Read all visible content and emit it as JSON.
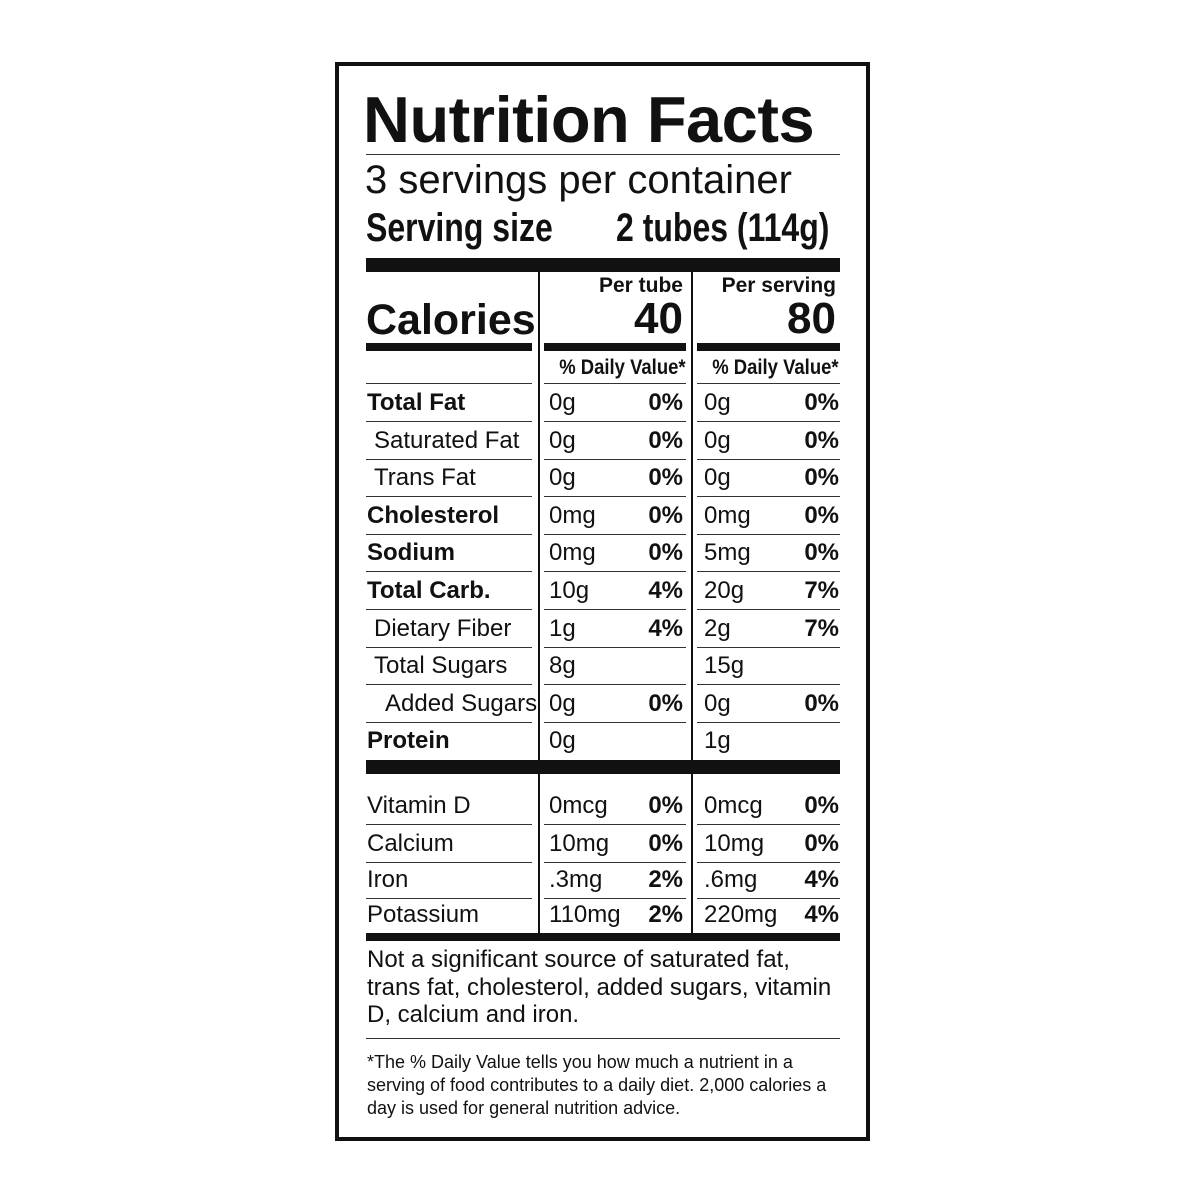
{
  "title": "Nutrition Facts",
  "servings_per_container": "3 servings per container",
  "serving_size": {
    "label": "Serving size",
    "value": "2 tubes (114g)"
  },
  "calories": {
    "label": "Calories",
    "columns": [
      {
        "header": "Per tube",
        "value": "40"
      },
      {
        "header": "Per serving",
        "value": "80"
      }
    ]
  },
  "daily_value_header": "% Daily Value*",
  "nutrients": [
    {
      "name": "Total Fat",
      "bold": true,
      "indent": 0,
      "c1": [
        "0g",
        "0%"
      ],
      "c2": [
        "0g",
        "0%"
      ]
    },
    {
      "name": "Saturated Fat",
      "bold": false,
      "indent": 1,
      "c1": [
        "0g",
        "0%"
      ],
      "c2": [
        "0g",
        "0%"
      ]
    },
    {
      "name": "Trans Fat",
      "bold": false,
      "indent": 1,
      "c1": [
        "0g",
        "0%"
      ],
      "c2": [
        "0g",
        "0%"
      ]
    },
    {
      "name": "Cholesterol",
      "bold": true,
      "indent": 0,
      "c1": [
        "0mg",
        "0%"
      ],
      "c2": [
        "0mg",
        "0%"
      ]
    },
    {
      "name": "Sodium",
      "bold": true,
      "indent": 0,
      "c1": [
        "0mg",
        "0%"
      ],
      "c2": [
        "5mg",
        "0%"
      ]
    },
    {
      "name": "Total Carb.",
      "bold": true,
      "indent": 0,
      "c1": [
        "10g",
        "4%"
      ],
      "c2": [
        "20g",
        "7%"
      ]
    },
    {
      "name": "Dietary Fiber",
      "bold": false,
      "indent": 1,
      "c1": [
        "1g",
        "4%"
      ],
      "c2": [
        "2g",
        "7%"
      ]
    },
    {
      "name": "Total Sugars",
      "bold": false,
      "indent": 1,
      "c1": [
        "8g",
        ""
      ],
      "c2": [
        "15g",
        ""
      ]
    },
    {
      "name": "Added Sugars",
      "bold": false,
      "indent": 2,
      "c1": [
        "0g",
        "0%"
      ],
      "c2": [
        "0g",
        "0%"
      ]
    },
    {
      "name": "Protein",
      "bold": true,
      "indent": 0,
      "c1": [
        "0g",
        ""
      ],
      "c2": [
        "1g",
        ""
      ]
    }
  ],
  "vitamins": [
    {
      "name": "Vitamin D",
      "c1": [
        "0mcg",
        "0%"
      ],
      "c2": [
        "0mcg",
        "0%"
      ]
    },
    {
      "name": "Calcium",
      "c1": [
        "10mg",
        "0%"
      ],
      "c2": [
        "10mg",
        "0%"
      ]
    },
    {
      "name": "Iron",
      "c1": [
        ".3mg",
        "2%"
      ],
      "c2": [
        ".6mg",
        "4%"
      ]
    },
    {
      "name": "Potassium",
      "c1": [
        "110mg",
        "2%"
      ],
      "c2": [
        "220mg",
        "4%"
      ]
    }
  ],
  "not_significant": "Not a significant source of saturated fat, trans fat, cholesterol, added sugars, vitamin D, calcium and iron.",
  "footnote": "*The % Daily Value tells you how much a nutrient in a serving of food contributes to a daily diet. 2,000 calories a day is used for general nutrition advice."
}
